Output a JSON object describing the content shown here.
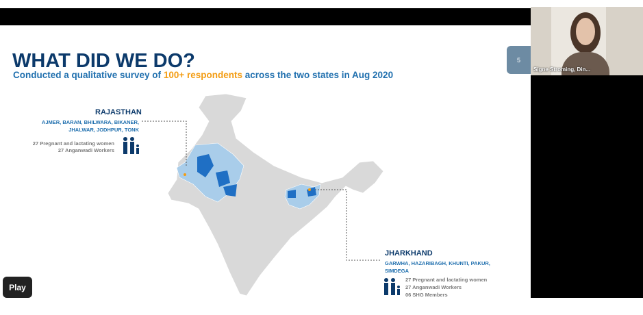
{
  "header": {
    "title": "WHAT DID WE DO?",
    "subtitle_before": "Conducted a qualitative survey of",
    "subtitle_highlight": "100+ respondents",
    "subtitle_after": "across the two states in Aug 2020"
  },
  "slide_number": "5",
  "states": [
    {
      "name": "RAJASTHAN",
      "districts": [
        "AJMER, BARAN, BHILWARA, BIKANER,",
        "JHALWAR, JODHPUR, TONK"
      ],
      "respondents": [
        "27 Pregnant and lactating women",
        "27 Anganwadi Workers"
      ]
    },
    {
      "name": "JHARKHAND",
      "districts": [
        "GARWHA, HAZARIBAGH, KHUNTI, PAKUR,",
        "SIMDEGA"
      ],
      "respondents": [
        "27 Pregnant and lactating women",
        "27 Anganwadi Workers",
        "06 SHG Members"
      ]
    }
  ],
  "participant": "Signe Stroming, Din...",
  "controls": {
    "play": "Play"
  }
}
